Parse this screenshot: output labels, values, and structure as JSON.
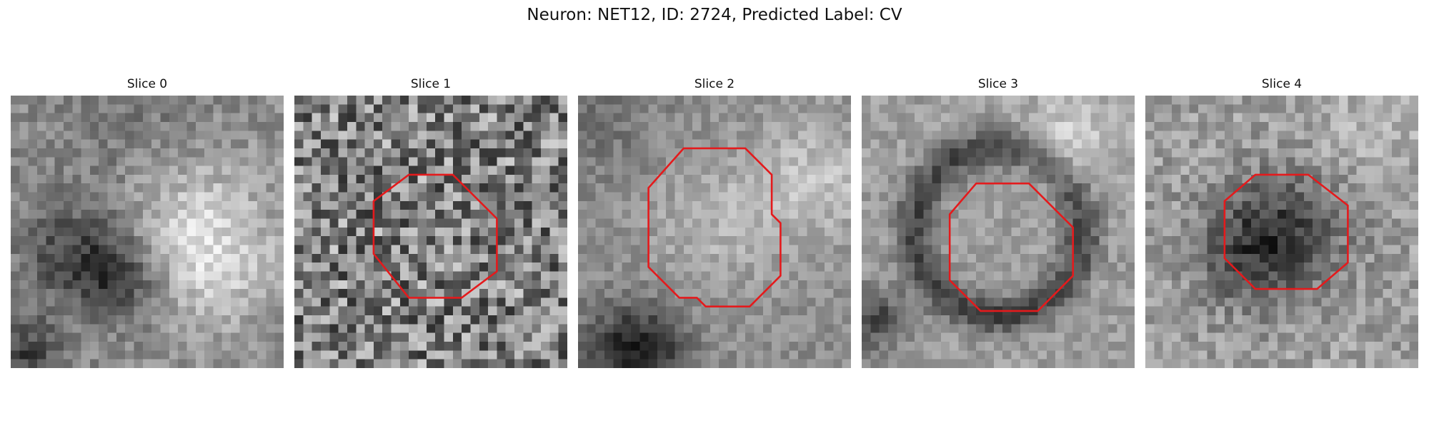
{
  "figure": {
    "title": "Neuron: NET12, ID: 2724, Predicted Label: CV"
  },
  "panels": [
    {
      "title": "Slice 0",
      "seed": 11,
      "has_outline": false
    },
    {
      "title": "Slice 1",
      "seed": 23,
      "has_outline": true
    },
    {
      "title": "Slice 2",
      "seed": 37,
      "has_outline": true
    },
    {
      "title": "Slice 3",
      "seed": 41,
      "has_outline": true
    },
    {
      "title": "Slice 4",
      "seed": 53,
      "has_outline": true
    }
  ],
  "colors": {
    "outline": "#e41a1c",
    "colormap": "gray"
  }
}
